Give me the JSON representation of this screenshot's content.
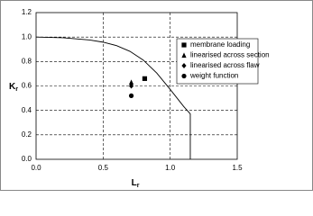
{
  "chart_data": {
    "type": "scatter",
    "xlabel": {
      "text": "L",
      "subscript": "r"
    },
    "ylabel": {
      "text": "K",
      "subscript": "r"
    },
    "xlim": [
      0,
      1.5
    ],
    "ylim": [
      0,
      1.2
    ],
    "xticks": [
      {
        "value": 0,
        "label": "0.0"
      },
      0.5,
      {
        "value": 1,
        "label": "1.0"
      },
      1.5
    ],
    "yticks": [
      {
        "value": 0,
        "label": "0.0"
      },
      0.2,
      0.4,
      0.6,
      0.8,
      {
        "value": 1,
        "label": "1.0"
      },
      1.2
    ],
    "grid": true,
    "legend": "upper right",
    "series": [
      {
        "line": true,
        "color": "#000000",
        "x": [
          0,
          0.2,
          0.4,
          0.5,
          0.6,
          0.7,
          0.8,
          0.9,
          1.0,
          1.1,
          1.15,
          1.15
        ],
        "values": [
          1.0,
          0.994,
          0.976,
          0.958,
          0.93,
          0.883,
          0.811,
          0.705,
          0.572,
          0.433,
          0.371,
          0
        ]
      },
      {
        "name": "membrane loading",
        "marker": "square",
        "color": "#000000",
        "x": [
          0.81
        ],
        "values": [
          0.66
        ]
      },
      {
        "name": "linearised across section",
        "marker": "triangle",
        "color": "#000000",
        "x": [
          0.71
        ],
        "values": [
          0.63
        ]
      },
      {
        "name": "linearised across flaw",
        "marker": "diamond",
        "color": "#000000",
        "x": [
          0.71
        ],
        "values": [
          0.6
        ]
      },
      {
        "name": "weight function",
        "marker": "circle",
        "color": "#000000",
        "x": [
          0.71
        ],
        "values": [
          0.52
        ]
      }
    ]
  }
}
